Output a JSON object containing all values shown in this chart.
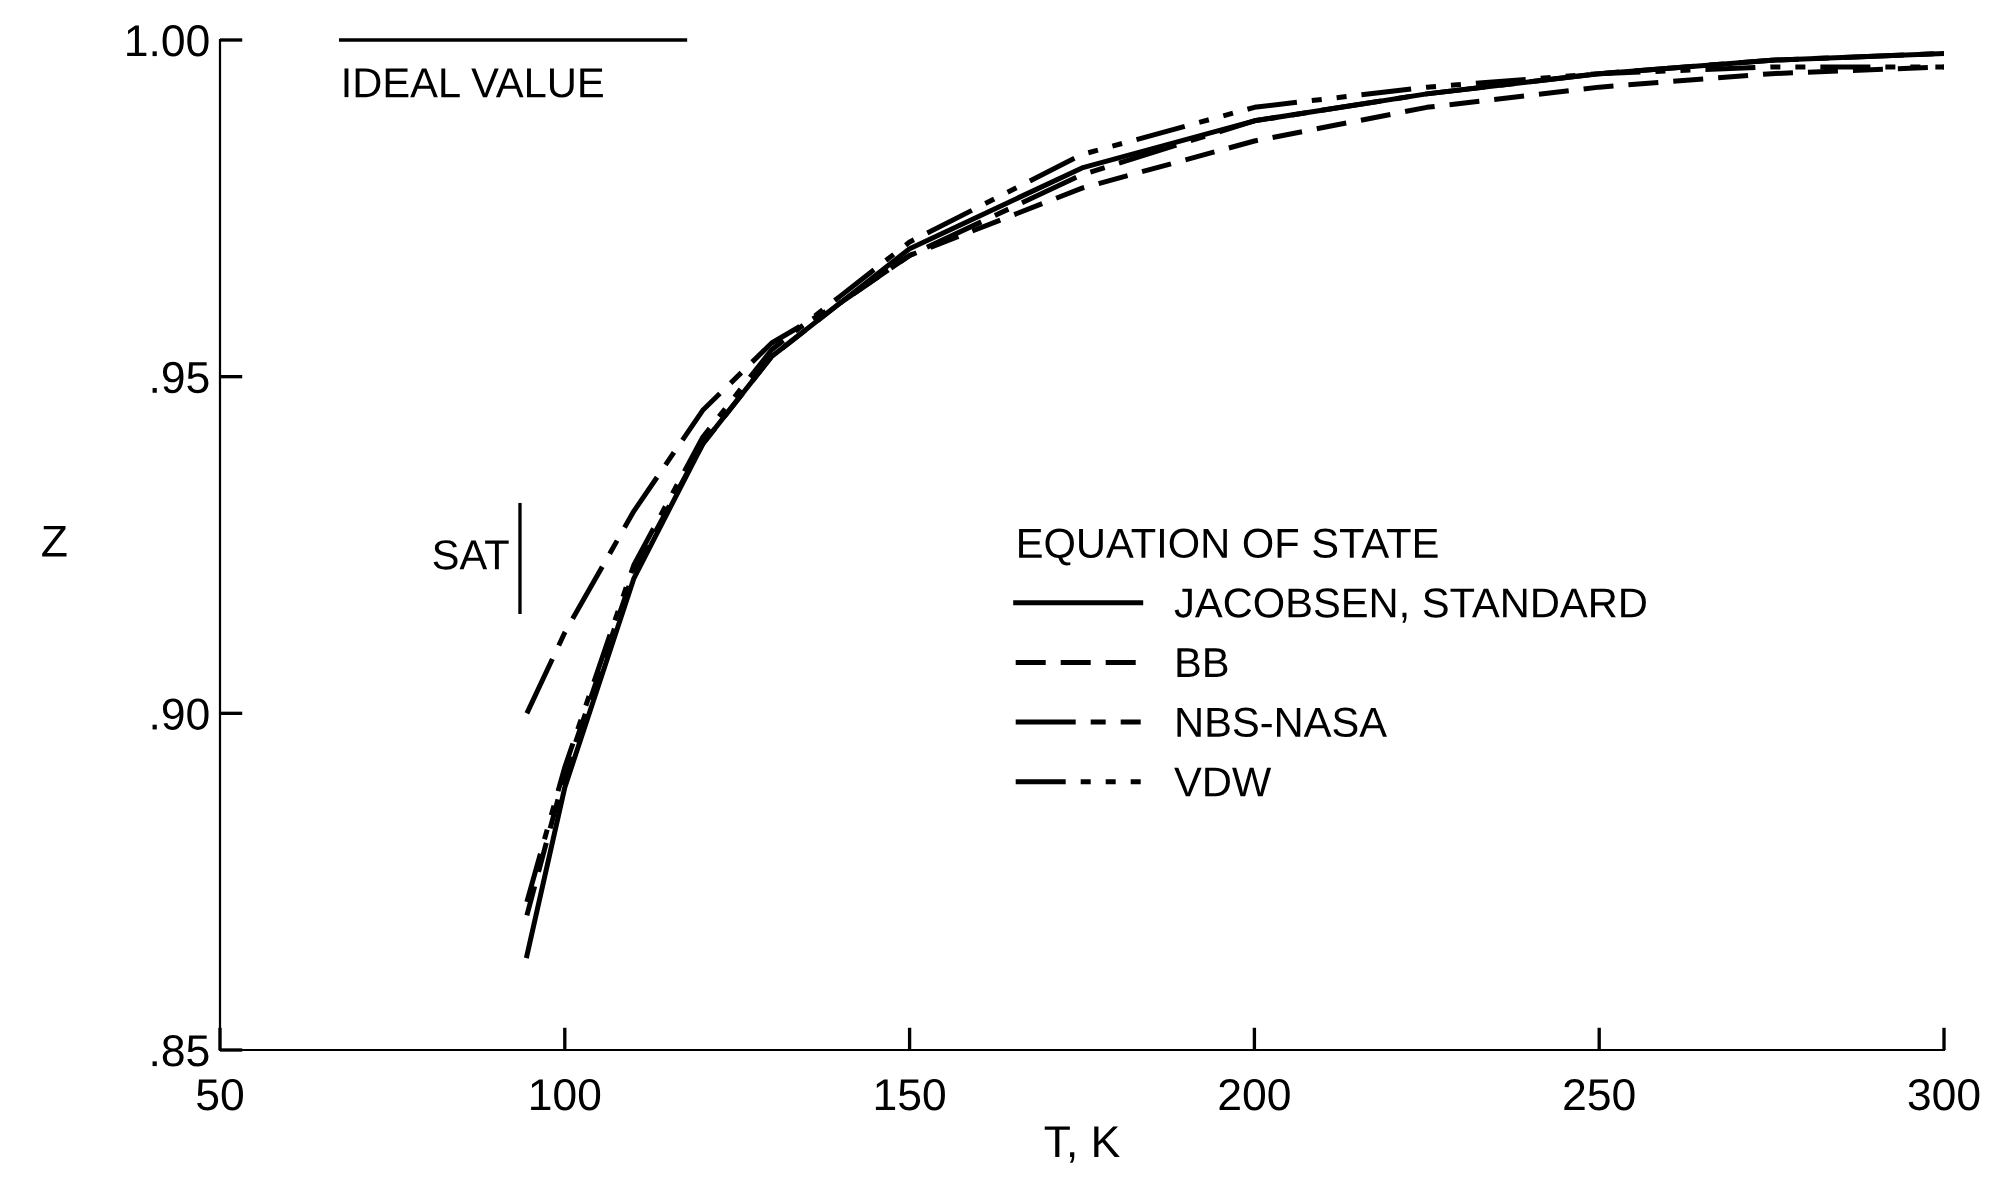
{
  "chart_data": {
    "type": "line",
    "xlabel": "T, K",
    "ylabel": "Z",
    "legend_title": "EQUATION OF STATE",
    "xlim": [
      50,
      300
    ],
    "xticks": [
      50,
      100,
      150,
      200,
      250,
      300
    ],
    "ylim": [
      0.85,
      1.0
    ],
    "yticks": [
      {
        "value": 0.85,
        "label": ".85"
      },
      {
        "value": 0.9,
        "label": ".90"
      },
      {
        "value": 0.95,
        "label": ".95"
      },
      {
        "value": 1.0,
        "label": "1.00"
      }
    ],
    "x": [
      94.5,
      100,
      110,
      120,
      130,
      140,
      150,
      175,
      200,
      225,
      250,
      275,
      300
    ],
    "series": [
      {
        "name": "JACOBSEN, STANDARD",
        "color": "#000000",
        "line_style": "solid",
        "values": [
          0.864,
          0.889,
          0.92,
          0.94,
          0.953,
          0.961,
          0.969,
          0.981,
          0.988,
          0.992,
          0.995,
          0.997,
          0.998
        ]
      },
      {
        "name": "BB",
        "color": "#000000",
        "line_style": "dashed",
        "values": [
          0.87,
          0.891,
          0.921,
          0.94,
          0.953,
          0.961,
          0.968,
          0.978,
          0.985,
          0.99,
          0.993,
          0.995,
          0.996
        ]
      },
      {
        "name": "NBS-NASA",
        "color": "#000000",
        "line_style": "dashdot",
        "values": [
          0.9,
          0.912,
          0.93,
          0.945,
          0.955,
          0.961,
          0.968,
          0.98,
          0.988,
          0.992,
          0.995,
          0.997,
          0.998
        ]
      },
      {
        "name": "VDW",
        "color": "#000000",
        "line_style": "dashdotdot",
        "values": [
          0.872,
          0.892,
          0.922,
          0.941,
          0.954,
          0.962,
          0.97,
          0.983,
          0.99,
          0.993,
          0.995,
          0.996,
          0.996
        ]
      }
    ],
    "ref_lines": [
      {
        "axis": "y",
        "value": 1.0,
        "label": "IDEAL VALUE"
      },
      {
        "axis": "x",
        "value": 93.5,
        "label": "SAT"
      }
    ],
    "legend": "right",
    "grid": false,
    "marker": "none"
  }
}
